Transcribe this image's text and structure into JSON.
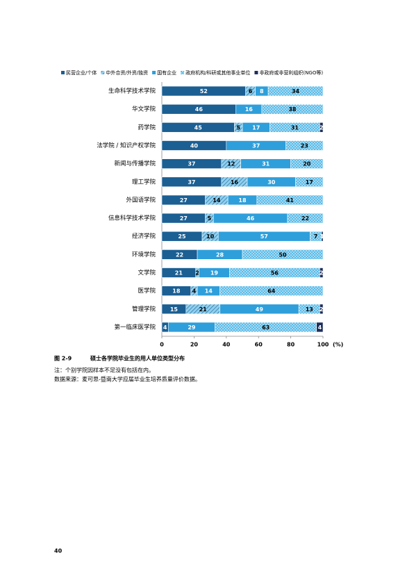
{
  "chart_data": {
    "type": "stacked-barh",
    "categories": [
      "生命科学技术学院",
      "华文学院",
      "药学院",
      "法学院 / 知识产权学院",
      "新闻与传播学院",
      "理工学院",
      "外国语学院",
      "信息科学技术学院",
      "经济学院",
      "环境学院",
      "文学院",
      "医学院",
      "管理学院",
      "第一临床医学院"
    ],
    "series": [
      {
        "name": "民营企业/个体",
        "color": "#1b5f93",
        "pattern": "solid",
        "values": [
          52,
          46,
          45,
          40,
          37,
          37,
          27,
          27,
          25,
          22,
          21,
          18,
          15,
          4
        ]
      },
      {
        "name": "中外合资/外资/独资",
        "color": "#7fc6ea",
        "pattern": "hatch",
        "values": [
          6,
          null,
          5,
          null,
          12,
          16,
          14,
          5,
          10,
          null,
          2,
          4,
          21,
          null
        ]
      },
      {
        "name": "国有企业",
        "color": "#2e9fdb",
        "pattern": "solid",
        "values": [
          8,
          16,
          17,
          37,
          31,
          30,
          18,
          46,
          57,
          28,
          19,
          14,
          49,
          29
        ]
      },
      {
        "name": "政府机构/科研或其他事业单位",
        "color": "#8ed3f2",
        "pattern": "dots",
        "values": [
          34,
          38,
          31,
          23,
          20,
          17,
          41,
          22,
          7,
          50,
          56,
          64,
          13,
          63
        ]
      },
      {
        "name": "非政府或非营利组织(NGO等)",
        "color": "#1d2f5c",
        "pattern": "solid",
        "values": [
          null,
          null,
          2,
          null,
          null,
          null,
          null,
          null,
          1,
          null,
          2,
          null,
          2,
          4
        ]
      }
    ],
    "xlim": [
      0,
      100
    ],
    "xticks": [
      0,
      20,
      40,
      60,
      80,
      100
    ],
    "x_unit": "(%)"
  },
  "caption": {
    "number": "图 2-9",
    "title": "硕士各学院毕业生的用人单位类型分布"
  },
  "notes": [
    "注：个别学院因样本不足没有包括在内。",
    "数据来源：麦可思-暨南大学应届毕业生培养质量评价数据。"
  ],
  "page_number": "40"
}
